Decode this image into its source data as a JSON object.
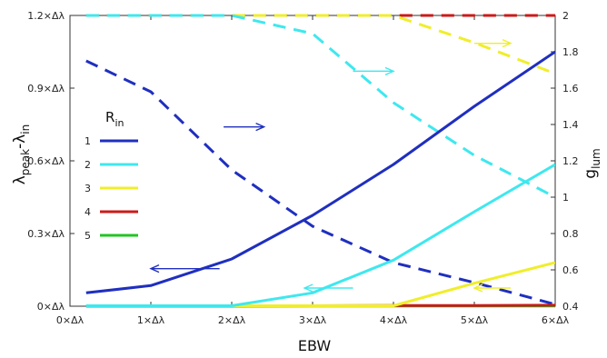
{
  "chart_data": {
    "type": "line",
    "xlabel": "EBW",
    "ylabel_left": {
      "main": "λ",
      "sub1": "peak",
      "mid": "-λ",
      "sub2": "in"
    },
    "ylabel_right": {
      "main": "g",
      "sub": "lum"
    },
    "xlim": [
      0,
      6
    ],
    "ylim_left": [
      0,
      1.2
    ],
    "ylim_right": [
      0.4,
      2.0
    ],
    "x_ticks": [
      0,
      1,
      2,
      3,
      4,
      5,
      6
    ],
    "x_tick_labels": [
      "0×Δλ",
      "1×Δλ",
      "2×Δλ",
      "3×Δλ",
      "4×Δλ",
      "5×Δλ",
      "6×Δλ"
    ],
    "y_left_ticks": [
      0,
      0.3,
      0.6,
      0.9,
      1.2
    ],
    "y_left_tick_labels": [
      "0×Δλ",
      "0.3×Δλ",
      "0.6×Δλ",
      "0.9×Δλ",
      "1.2×Δλ"
    ],
    "y_right_ticks": [
      0.4,
      0.6,
      0.8,
      1.0,
      1.2,
      1.4,
      1.6,
      1.8,
      2.0
    ],
    "y_right_tick_labels": [
      "0.4",
      "0.6",
      "0.8",
      "1",
      "1.2",
      "1.4",
      "1.6",
      "1.8",
      "2"
    ],
    "grid": false,
    "legend": {
      "title_main": "R",
      "title_sub": "in",
      "placement": "left",
      "entries": [
        {
          "label": "1",
          "color": "#1f2fbf"
        },
        {
          "label": "2",
          "color": "#3ee8ee"
        },
        {
          "label": "3",
          "color": "#f0ee2a"
        },
        {
          "label": "4",
          "color": "#cc1a1a"
        },
        {
          "label": "5",
          "color": "#22c422"
        }
      ]
    },
    "series": [
      {
        "name": "1",
        "axis": "left",
        "style": "solid",
        "color": "#1f2fbf",
        "x": [
          0.2,
          1,
          2,
          3,
          4,
          5,
          6
        ],
        "y": [
          0.055,
          0.085,
          0.195,
          0.375,
          0.585,
          0.825,
          1.05
        ]
      },
      {
        "name": "2",
        "axis": "left",
        "style": "solid",
        "color": "#3ee8ee",
        "x": [
          0.2,
          1,
          2,
          3,
          4,
          5,
          6
        ],
        "y": [
          0.002,
          0.002,
          0.002,
          0.055,
          0.19,
          0.39,
          0.585
        ]
      },
      {
        "name": "3",
        "axis": "left",
        "style": "solid",
        "color": "#f0ee2a",
        "x": [
          0.2,
          1,
          2,
          3,
          4,
          5,
          6
        ],
        "y": [
          0.002,
          0.002,
          0.002,
          0.002,
          0.002,
          0.095,
          0.18
        ]
      },
      {
        "name": "4",
        "axis": "left",
        "style": "solid",
        "color": "#cc1a1a",
        "x": [
          0.2,
          1,
          2,
          3,
          4,
          5,
          6
        ],
        "y": [
          0.001,
          0.001,
          0.001,
          0.002,
          0.003,
          0.003,
          0.004
        ]
      },
      {
        "name": "5",
        "axis": "left",
        "style": "solid",
        "color": "#22c422",
        "x": [
          0.2,
          1,
          2,
          3,
          4,
          5,
          6
        ],
        "y": [
          0.001,
          0.001,
          0.001,
          0.001,
          0.001,
          0.001,
          0.001
        ]
      },
      {
        "name": "1",
        "axis": "right",
        "style": "dashed",
        "color": "#1f2fbf",
        "x": [
          0.2,
          1,
          2,
          3,
          4,
          5,
          6
        ],
        "y": [
          1.75,
          1.58,
          1.15,
          0.84,
          0.64,
          0.53,
          0.41
        ]
      },
      {
        "name": "2",
        "axis": "right",
        "style": "dashed",
        "color": "#3ee8ee",
        "x": [
          0.2,
          1,
          2,
          3,
          4,
          5,
          6
        ],
        "y": [
          2.0,
          2.0,
          2.0,
          1.9,
          1.52,
          1.23,
          1.0
        ]
      },
      {
        "name": "3",
        "axis": "right",
        "style": "dashed",
        "color": "#f0ee2a",
        "x": [
          0.2,
          1,
          2,
          3,
          4,
          5,
          6
        ],
        "y": [
          2.0,
          2.0,
          2.0,
          2.0,
          2.0,
          1.85,
          1.68
        ]
      },
      {
        "name": "4",
        "axis": "right",
        "style": "dashed",
        "color": "#cc1a1a",
        "x": [
          0.2,
          1,
          2,
          3,
          4,
          5,
          6
        ],
        "y": [
          2.0,
          2.0,
          2.0,
          2.0,
          2.0,
          2.0,
          2.0
        ]
      },
      {
        "name": "5",
        "axis": "right",
        "style": "dashed",
        "color": "#22c422",
        "x": [
          0.2,
          1,
          2,
          3,
          4,
          5,
          6
        ],
        "y": [
          2.0,
          2.0,
          2.0,
          2.0,
          2.0,
          2.0,
          2.0
        ]
      }
    ],
    "annotations": [
      {
        "type": "arrow",
        "direction": "right",
        "color": "#1f2fbf",
        "axis": "left",
        "x": [
          1.9,
          2.4
        ],
        "y": 0.74
      },
      {
        "type": "arrow",
        "direction": "left",
        "color": "#1f2fbf",
        "axis": "left",
        "x": [
          1.85,
          1.0
        ],
        "y": 0.155
      },
      {
        "type": "arrow",
        "direction": "right",
        "color": "#3ee8ee",
        "axis": "left",
        "x": [
          3.5,
          4.0
        ],
        "y": 0.97
      },
      {
        "type": "arrow",
        "direction": "left",
        "color": "#3ee8ee",
        "axis": "left",
        "x": [
          3.5,
          2.9
        ],
        "y": 0.075
      },
      {
        "type": "arrow",
        "direction": "right",
        "color": "#f0ee2a",
        "axis": "left",
        "x": [
          5.0,
          5.45
        ],
        "y": 1.085
      },
      {
        "type": "arrow",
        "direction": "left",
        "color": "#f0ee2a",
        "axis": "left",
        "x": [
          5.45,
          5.0
        ],
        "y": 0.075
      }
    ]
  }
}
